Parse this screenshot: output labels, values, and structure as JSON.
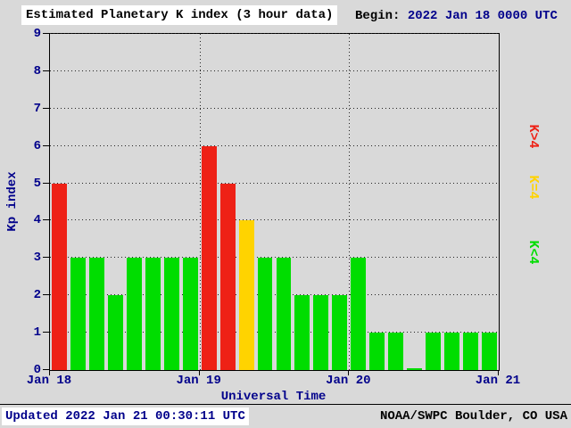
{
  "header": {
    "title": "Estimated Planetary K index (3 hour data)",
    "begin_label": "Begin:",
    "begin_value": "2022 Jan 18 0000 UTC"
  },
  "chart_data": {
    "type": "bar",
    "title": "Estimated Planetary K index (3 hour data)",
    "xlabel": "Universal Time",
    "ylabel": "Kp index",
    "ylim": [
      0,
      9
    ],
    "y_ticks": [
      0,
      1,
      2,
      3,
      4,
      5,
      6,
      7,
      8,
      9
    ],
    "x_tick_labels": [
      "Jan 18",
      "Jan 19",
      "Jan 20",
      "Jan 21"
    ],
    "bars_per_day": 8,
    "interval_hours": 3,
    "values": [
      5,
      3,
      3,
      2,
      3,
      3,
      3,
      3,
      6,
      5,
      4,
      3,
      3,
      2,
      2,
      2,
      3,
      1,
      1,
      0,
      1,
      1,
      1,
      1
    ],
    "color_rules": {
      "below_4": "#00dd00",
      "equal_4": "#ffd300",
      "above_4": "#ee2116"
    },
    "grid": "dotted",
    "legend_position": "right"
  },
  "legend": {
    "items": [
      {
        "label": "K>4",
        "color": "#ee2116"
      },
      {
        "label": "K=4",
        "color": "#ffd300"
      },
      {
        "label": "K<4",
        "color": "#00dd00"
      }
    ]
  },
  "footer": {
    "updated": "Updated 2022 Jan 21 00:30:11 UTC",
    "credit": "NOAA/SWPC Boulder, CO USA"
  }
}
